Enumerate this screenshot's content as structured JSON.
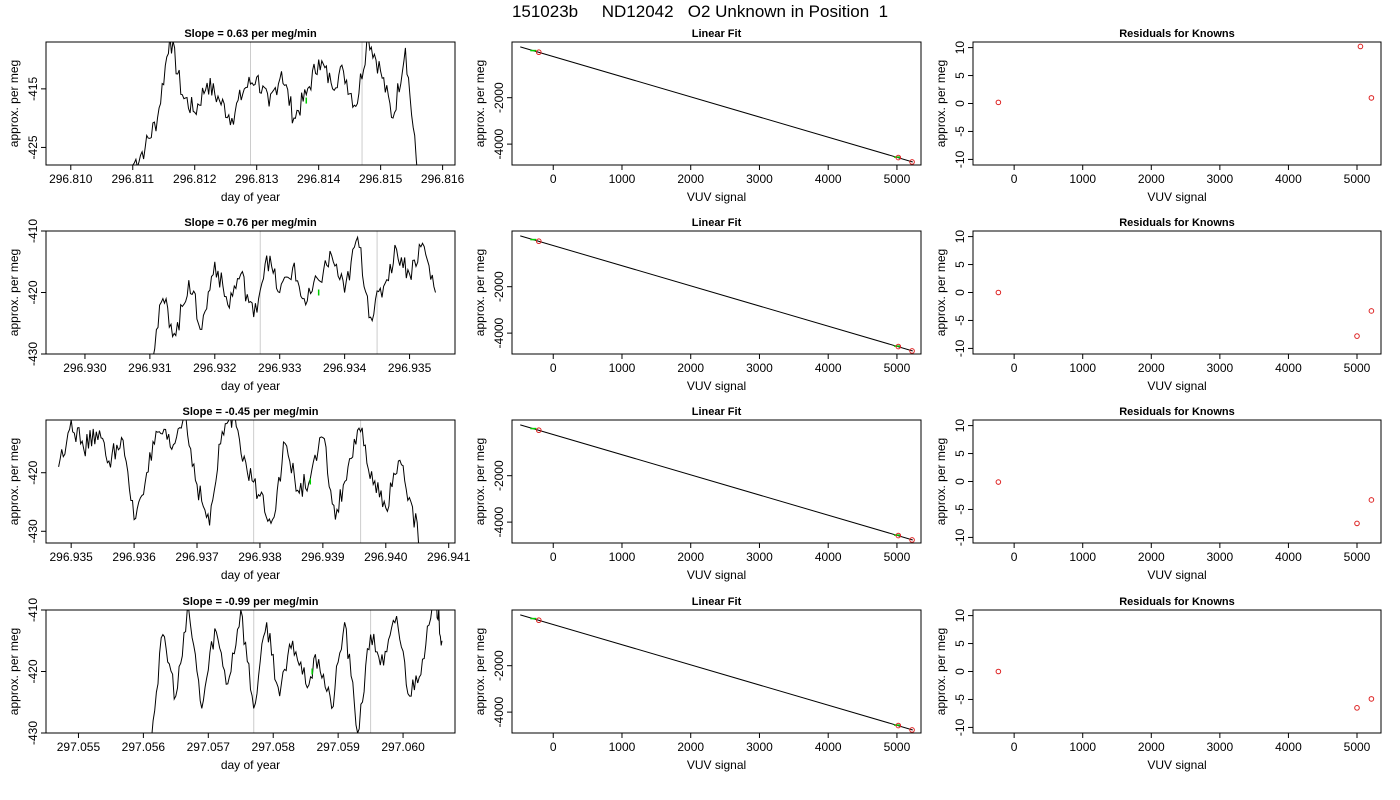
{
  "page_title": "151023b     ND12042   O2 Unknown in Position  1",
  "colors": {
    "line": "#000000",
    "marker_green": "#00cc00",
    "marker_red": "#dd2222",
    "vline": "#cccccc"
  },
  "chart_data": [
    {
      "type": "line",
      "row": 0,
      "col": 0,
      "title": "Slope =  0.63  per meg/min",
      "xlabel": "day of year",
      "ylabel": "approx. per meg",
      "xlim": [
        296.8096,
        296.8162
      ],
      "ylim": [
        -428,
        -407
      ],
      "xticks": [
        "296.810",
        "296.811",
        "296.812",
        "296.813",
        "296.814",
        "296.815",
        "296.816"
      ],
      "yticks": [
        "-425",
        "-415"
      ],
      "vlines": [
        296.8129,
        296.8147
      ],
      "marker": [
        296.8138,
        -417.0
      ],
      "trace_x_range": [
        296.811,
        296.8156
      ],
      "series": [
        {
          "x": [
            296.811,
            296.8112,
            296.8114,
            296.8116,
            296.8118,
            296.812,
            296.8122,
            296.8124,
            296.8126,
            296.8128,
            296.813,
            296.8132,
            296.8134,
            296.8136,
            296.8138,
            296.814,
            296.8142,
            296.8144,
            296.8146,
            296.8148,
            296.815,
            296.8152,
            296.8154,
            296.8156
          ],
          "y": [
            -428,
            -425,
            -420,
            -406,
            -416,
            -419,
            -414,
            -417,
            -420,
            -415,
            -413,
            -418,
            -412,
            -420,
            -416,
            -410,
            -414,
            -412,
            -418,
            -406,
            -412,
            -420,
            -408,
            -430
          ]
        }
      ]
    },
    {
      "type": "scatter",
      "row": 0,
      "col": 1,
      "title": "Linear Fit",
      "xlabel": "VUV signal",
      "ylabel": "approx. per meg",
      "xlim": [
        -600,
        5350
      ],
      "ylim": [
        -4900,
        400
      ],
      "xticks": [
        "0",
        "1000",
        "2000",
        "3000",
        "4000",
        "5000"
      ],
      "yticks": [
        "-4000",
        "-2000"
      ],
      "fit_line": [
        [
          -480,
          190
        ],
        [
          5230,
          -4770
        ]
      ],
      "points": [
        [
          -210,
          -40
        ],
        [
          5020,
          -4580
        ],
        [
          5220,
          -4770
        ]
      ],
      "green_points": [
        [
          -290,
          30
        ],
        [
          5000,
          -4560
        ]
      ]
    },
    {
      "type": "scatter",
      "row": 0,
      "col": 2,
      "title": "Residuals for Knowns",
      "xlabel": "VUV signal",
      "ylabel": "approx. per meg",
      "xlim": [
        -600,
        5350
      ],
      "ylim": [
        -11,
        11
      ],
      "xticks": [
        "0",
        "1000",
        "2000",
        "3000",
        "4000",
        "5000"
      ],
      "yticks": [
        "-10",
        "-5",
        "0",
        "5",
        "10"
      ],
      "points": [
        [
          -230,
          0.2
        ],
        [
          5050,
          10.2
        ],
        [
          5210,
          1.0
        ]
      ]
    },
    {
      "type": "line",
      "row": 1,
      "col": 0,
      "title": "Slope =  0.76  per meg/min",
      "xlabel": "day of year",
      "ylabel": "approx. per meg",
      "xlim": [
        296.9294,
        296.9357
      ],
      "ylim": [
        -430,
        -410
      ],
      "xticks": [
        "296.930",
        "296.931",
        "296.932",
        "296.933",
        "296.934",
        "296.935"
      ],
      "yticks": [
        "-430",
        "-420",
        "-410"
      ],
      "vlines": [
        296.9327,
        296.9345
      ],
      "marker": [
        296.9336,
        -420.0
      ],
      "trace_x_range": [
        296.931,
        296.9354
      ],
      "series": [
        {
          "x": [
            296.931,
            296.9312,
            296.9314,
            296.9316,
            296.9318,
            296.932,
            296.9322,
            296.9324,
            296.9326,
            296.9328,
            296.933,
            296.9332,
            296.9334,
            296.9336,
            296.9338,
            296.934,
            296.9342,
            296.9344,
            296.9346,
            296.9348,
            296.935,
            296.9352,
            296.9354
          ],
          "y": [
            -432,
            -421,
            -427,
            -418,
            -426,
            -415,
            -422,
            -417,
            -424,
            -414,
            -420,
            -416,
            -422,
            -418,
            -414,
            -420,
            -411,
            -424,
            -419,
            -413,
            -417,
            -412,
            -420
          ]
        }
      ]
    },
    {
      "type": "scatter",
      "row": 1,
      "col": 1,
      "title": "Linear Fit",
      "xlabel": "VUV signal",
      "ylabel": "approx. per meg",
      "xlim": [
        -600,
        5350
      ],
      "ylim": [
        -4900,
        400
      ],
      "xticks": [
        "0",
        "1000",
        "2000",
        "3000",
        "4000",
        "5000"
      ],
      "yticks": [
        "-4000",
        "-2000"
      ],
      "fit_line": [
        [
          -480,
          190
        ],
        [
          5230,
          -4770
        ]
      ],
      "points": [
        [
          -210,
          -40
        ],
        [
          5020,
          -4580
        ],
        [
          5220,
          -4770
        ]
      ],
      "green_points": [
        [
          -290,
          30
        ],
        [
          5000,
          -4560
        ]
      ]
    },
    {
      "type": "scatter",
      "row": 1,
      "col": 2,
      "title": "Residuals for Knowns",
      "xlabel": "VUV signal",
      "ylabel": "approx. per meg",
      "xlim": [
        -600,
        5350
      ],
      "ylim": [
        -11,
        11
      ],
      "xticks": [
        "0",
        "1000",
        "2000",
        "3000",
        "4000",
        "5000"
      ],
      "yticks": [
        "-10",
        "-5",
        "0",
        "5",
        "10"
      ],
      "points": [
        [
          -230,
          0.0
        ],
        [
          5000,
          -7.8
        ],
        [
          5210,
          -3.3
        ]
      ]
    },
    {
      "type": "line",
      "row": 2,
      "col": 0,
      "title": "Slope =  -0.45  per meg/min",
      "xlabel": "day of year",
      "ylabel": "approx. per meg",
      "xlim": [
        296.9346,
        296.9411
      ],
      "ylim": [
        -432,
        -411
      ],
      "xticks": [
        "296.935",
        "296.936",
        "296.937",
        "296.938",
        "296.939",
        "296.940",
        "296.941"
      ],
      "yticks": [
        "-430",
        "-420"
      ],
      "vlines": [
        296.9379,
        296.9396
      ],
      "marker": [
        296.9388,
        -421.5
      ],
      "trace_x_range": [
        296.9348,
        296.9406
      ],
      "series": [
        {
          "x": [
            296.9348,
            296.935,
            296.9352,
            296.9354,
            296.9356,
            296.9358,
            296.936,
            296.9362,
            296.9364,
            296.9366,
            296.9368,
            296.937,
            296.9372,
            296.9374,
            296.9376,
            296.9378,
            296.938,
            296.9382,
            296.9384,
            296.9386,
            296.9388,
            296.939,
            296.9392,
            296.9394,
            296.9396,
            296.9398,
            296.94,
            296.9402,
            296.9404,
            296.9406
          ],
          "y": [
            -419,
            -411,
            -416,
            -413,
            -418,
            -414,
            -428,
            -420,
            -413,
            -416,
            -410,
            -422,
            -429,
            -413,
            -410,
            -420,
            -424,
            -428,
            -415,
            -423,
            -421,
            -414,
            -428,
            -419,
            -413,
            -422,
            -426,
            -418,
            -425,
            -435
          ]
        }
      ]
    },
    {
      "type": "scatter",
      "row": 2,
      "col": 1,
      "title": "Linear Fit",
      "xlabel": "VUV signal",
      "ylabel": "approx. per meg",
      "xlim": [
        -600,
        5350
      ],
      "ylim": [
        -4900,
        400
      ],
      "xticks": [
        "0",
        "1000",
        "2000",
        "3000",
        "4000",
        "5000"
      ],
      "yticks": [
        "-4000",
        "-2000"
      ],
      "fit_line": [
        [
          -480,
          190
        ],
        [
          5230,
          -4770
        ]
      ],
      "points": [
        [
          -210,
          -40
        ],
        [
          5020,
          -4580
        ],
        [
          5220,
          -4770
        ]
      ],
      "green_points": [
        [
          -290,
          30
        ],
        [
          5000,
          -4560
        ]
      ]
    },
    {
      "type": "scatter",
      "row": 2,
      "col": 2,
      "title": "Residuals for Knowns",
      "xlabel": "VUV signal",
      "ylabel": "approx. per meg",
      "xlim": [
        -600,
        5350
      ],
      "ylim": [
        -11,
        11
      ],
      "xticks": [
        "0",
        "1000",
        "2000",
        "3000",
        "4000",
        "5000"
      ],
      "yticks": [
        "-10",
        "-5",
        "0",
        "5",
        "10"
      ],
      "points": [
        [
          -230,
          -0.1
        ],
        [
          5000,
          -7.5
        ],
        [
          5210,
          -3.3
        ]
      ]
    },
    {
      "type": "line",
      "row": 3,
      "col": 0,
      "title": "Slope =  -0.99  per meg/min",
      "xlabel": "day of year",
      "ylabel": "approx. per meg",
      "xlim": [
        297.0545,
        297.0608
      ],
      "ylim": [
        -430,
        -410
      ],
      "xticks": [
        "297.055",
        "297.056",
        "297.057",
        "297.058",
        "297.059",
        "297.060"
      ],
      "yticks": [
        "-430",
        "-420",
        "-410"
      ],
      "vlines": [
        297.0577,
        297.0595
      ],
      "marker": [
        297.0586,
        -420.0
      ],
      "trace_x_range": [
        297.0561,
        297.0606
      ],
      "series": [
        {
          "x": [
            297.0561,
            297.0563,
            297.0565,
            297.0567,
            297.0569,
            297.0571,
            297.0573,
            297.0575,
            297.0577,
            297.0579,
            297.0581,
            297.0583,
            297.0585,
            297.0587,
            297.0589,
            297.0591,
            297.0593,
            297.0595,
            297.0597,
            297.0599,
            297.0601,
            297.0603,
            297.0605,
            297.0606
          ],
          "y": [
            -432,
            -414,
            -424,
            -410,
            -426,
            -413,
            -422,
            -410,
            -426,
            -412,
            -424,
            -415,
            -422,
            -418,
            -426,
            -412,
            -430,
            -414,
            -419,
            -411,
            -424,
            -418,
            -408,
            -415
          ]
        }
      ]
    },
    {
      "type": "scatter",
      "row": 3,
      "col": 1,
      "title": "Linear Fit",
      "xlabel": "VUV signal",
      "ylabel": "approx. per meg",
      "xlim": [
        -600,
        5350
      ],
      "ylim": [
        -4900,
        400
      ],
      "xticks": [
        "0",
        "1000",
        "2000",
        "3000",
        "4000",
        "5000"
      ],
      "yticks": [
        "-4000",
        "-2000"
      ],
      "fit_line": [
        [
          -480,
          190
        ],
        [
          5230,
          -4770
        ]
      ],
      "points": [
        [
          -210,
          -40
        ],
        [
          5020,
          -4580
        ],
        [
          5220,
          -4770
        ]
      ],
      "green_points": [
        [
          -290,
          30
        ],
        [
          5000,
          -4560
        ]
      ]
    },
    {
      "type": "scatter",
      "row": 3,
      "col": 2,
      "title": "Residuals for Knowns",
      "xlabel": "VUV signal",
      "ylabel": "approx. per meg",
      "xlim": [
        -600,
        5350
      ],
      "ylim": [
        -11,
        11
      ],
      "xticks": [
        "0",
        "1000",
        "2000",
        "3000",
        "4000",
        "5000"
      ],
      "yticks": [
        "-10",
        "-5",
        "0",
        "5",
        "10"
      ],
      "points": [
        [
          -230,
          0.0
        ],
        [
          5000,
          -6.5
        ],
        [
          5210,
          -4.9
        ]
      ]
    }
  ]
}
